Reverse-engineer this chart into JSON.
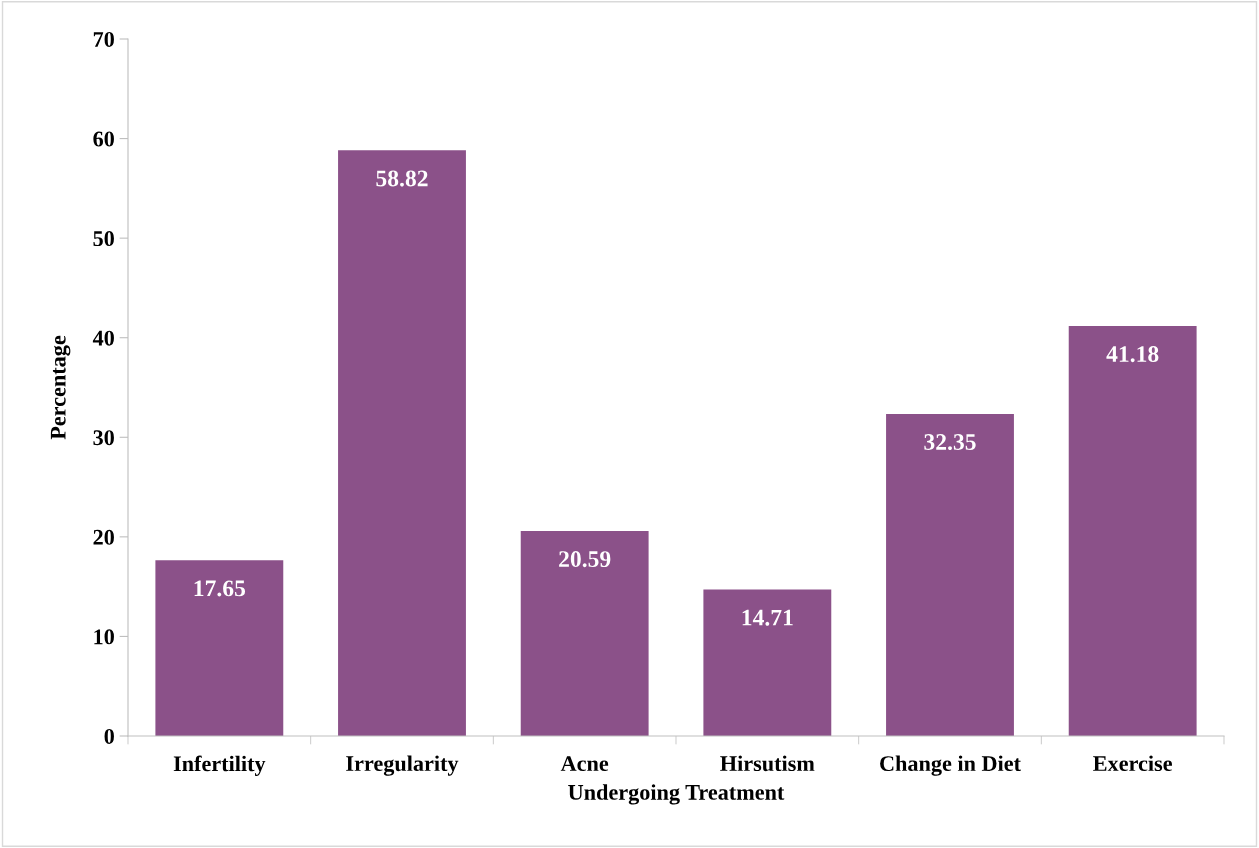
{
  "chart_data": {
    "type": "bar",
    "xlabel": "Undergoing Treatment",
    "ylabel": "Percentage",
    "categories": [
      "Infertility",
      "Irregularity",
      "Acne",
      "Hirsutism",
      "Change in Diet",
      "Exercise"
    ],
    "values": [
      17.65,
      58.82,
      20.59,
      14.71,
      32.35,
      41.18
    ],
    "color": "#8b5189",
    "ylim": [
      0,
      70
    ],
    "yticks": [
      0,
      10,
      20,
      30,
      40,
      50,
      60,
      70
    ],
    "data_labels": true
  }
}
